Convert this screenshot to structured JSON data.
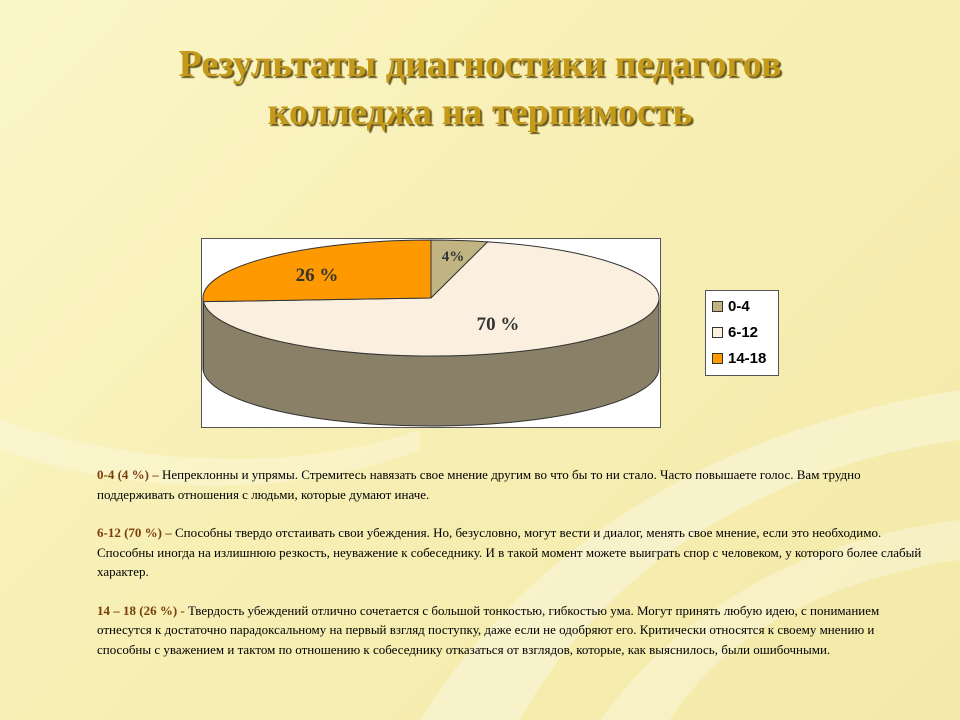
{
  "title": {
    "line1": "Результаты диагностики педагогов",
    "line2": "колледжа на терпимость"
  },
  "chart_data": {
    "type": "pie",
    "style": "3d",
    "categories": [
      "0-4",
      "6-12",
      "14-18"
    ],
    "values": [
      4,
      70,
      26
    ],
    "data_labels": [
      "4%",
      "70 %",
      "26 %"
    ],
    "colors": [
      "#c2b482",
      "#fbf0e0",
      "#ff9900"
    ],
    "legend": [
      "0-4",
      "6-12",
      "14-18"
    ],
    "legend_placement": "right"
  },
  "descriptions": [
    {
      "key": "0-4  (4 %) –",
      "text": " Непреклонны  и упрямы. Стремитесь  навязать свое мнение другим во что бы то ни стало. Часто повышаете голос. Вам трудно поддерживать отношения с людьми, которые думают иначе."
    },
    {
      "key": "6-12 (70 %)  –",
      "text": " Способны твердо отстаивать свои убеждения. Но, безусловно, могут вести и диалог, менять свое мнение, если это необходимо. Способны иногда на излишнюю резкость, неуважение к собеседнику. И в такой момент можете выиграть спор с человеком, у которого более слабый характер."
    },
    {
      "key": "14 – 18  (26 %) -",
      "text": "  Твердость убеждений отлично сочетается с большой тонкостью, гибкостью ума. Могут принять любую идею, с пониманием отнесутся к достаточно парадоксальному на первый  взгляд поступку, даже если не одобряют его. Критически относятся к своему мнению и способны с уважением и тактом по отношению к собеседнику отказаться от взглядов, которые, как выяснилось, были ошибочными."
    }
  ]
}
